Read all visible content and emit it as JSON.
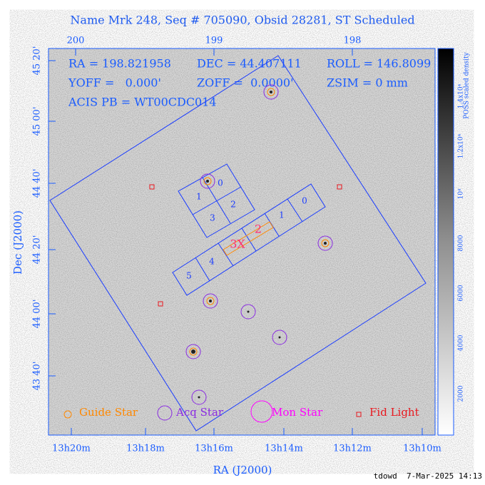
{
  "title": "Name Mrk 248, Seq # 705090, Obsid 28281, ST Scheduled",
  "info": {
    "ra": "RA = 198.821958",
    "dec": "DEC = 44.407111",
    "roll": "ROLL = 146.8099",
    "yoff": "YOFF =   0.000'",
    "zoff": "ZOFF =  0.0000'",
    "zsim": "ZSIM = 0 mm",
    "acis": "ACIS PB = WT00CDC014"
  },
  "top_axis": {
    "labels": [
      "200",
      "199",
      "198"
    ]
  },
  "left_axis": {
    "title": "Dec (J2000)",
    "labels": [
      "45 20'",
      "45 00'",
      "44 40'",
      "44 20'",
      "44 00'",
      "43 40'"
    ]
  },
  "bottom_axis": {
    "title": "RA (J2000)",
    "labels": [
      "13h20m",
      "13h18m",
      "13h16m",
      "13h14m",
      "13h12m",
      "13h10m"
    ]
  },
  "i_array": {
    "chips": [
      "0",
      "1",
      "2",
      "3"
    ]
  },
  "s_array": {
    "chips": [
      "5",
      "4",
      "3X",
      "2",
      "1",
      "0"
    ]
  },
  "legend": {
    "items": [
      "Guide Star",
      "Acq Star",
      "Mon Star",
      "Fid Light"
    ]
  },
  "colorbar": {
    "title": "POSS scaled density",
    "labels": [
      "2000",
      "4000",
      "6000",
      "8000",
      "10⁴",
      "1.2x10⁴",
      "1.4x10⁴"
    ]
  },
  "footer": "tdowd  7-Mar-2025 14:13"
}
